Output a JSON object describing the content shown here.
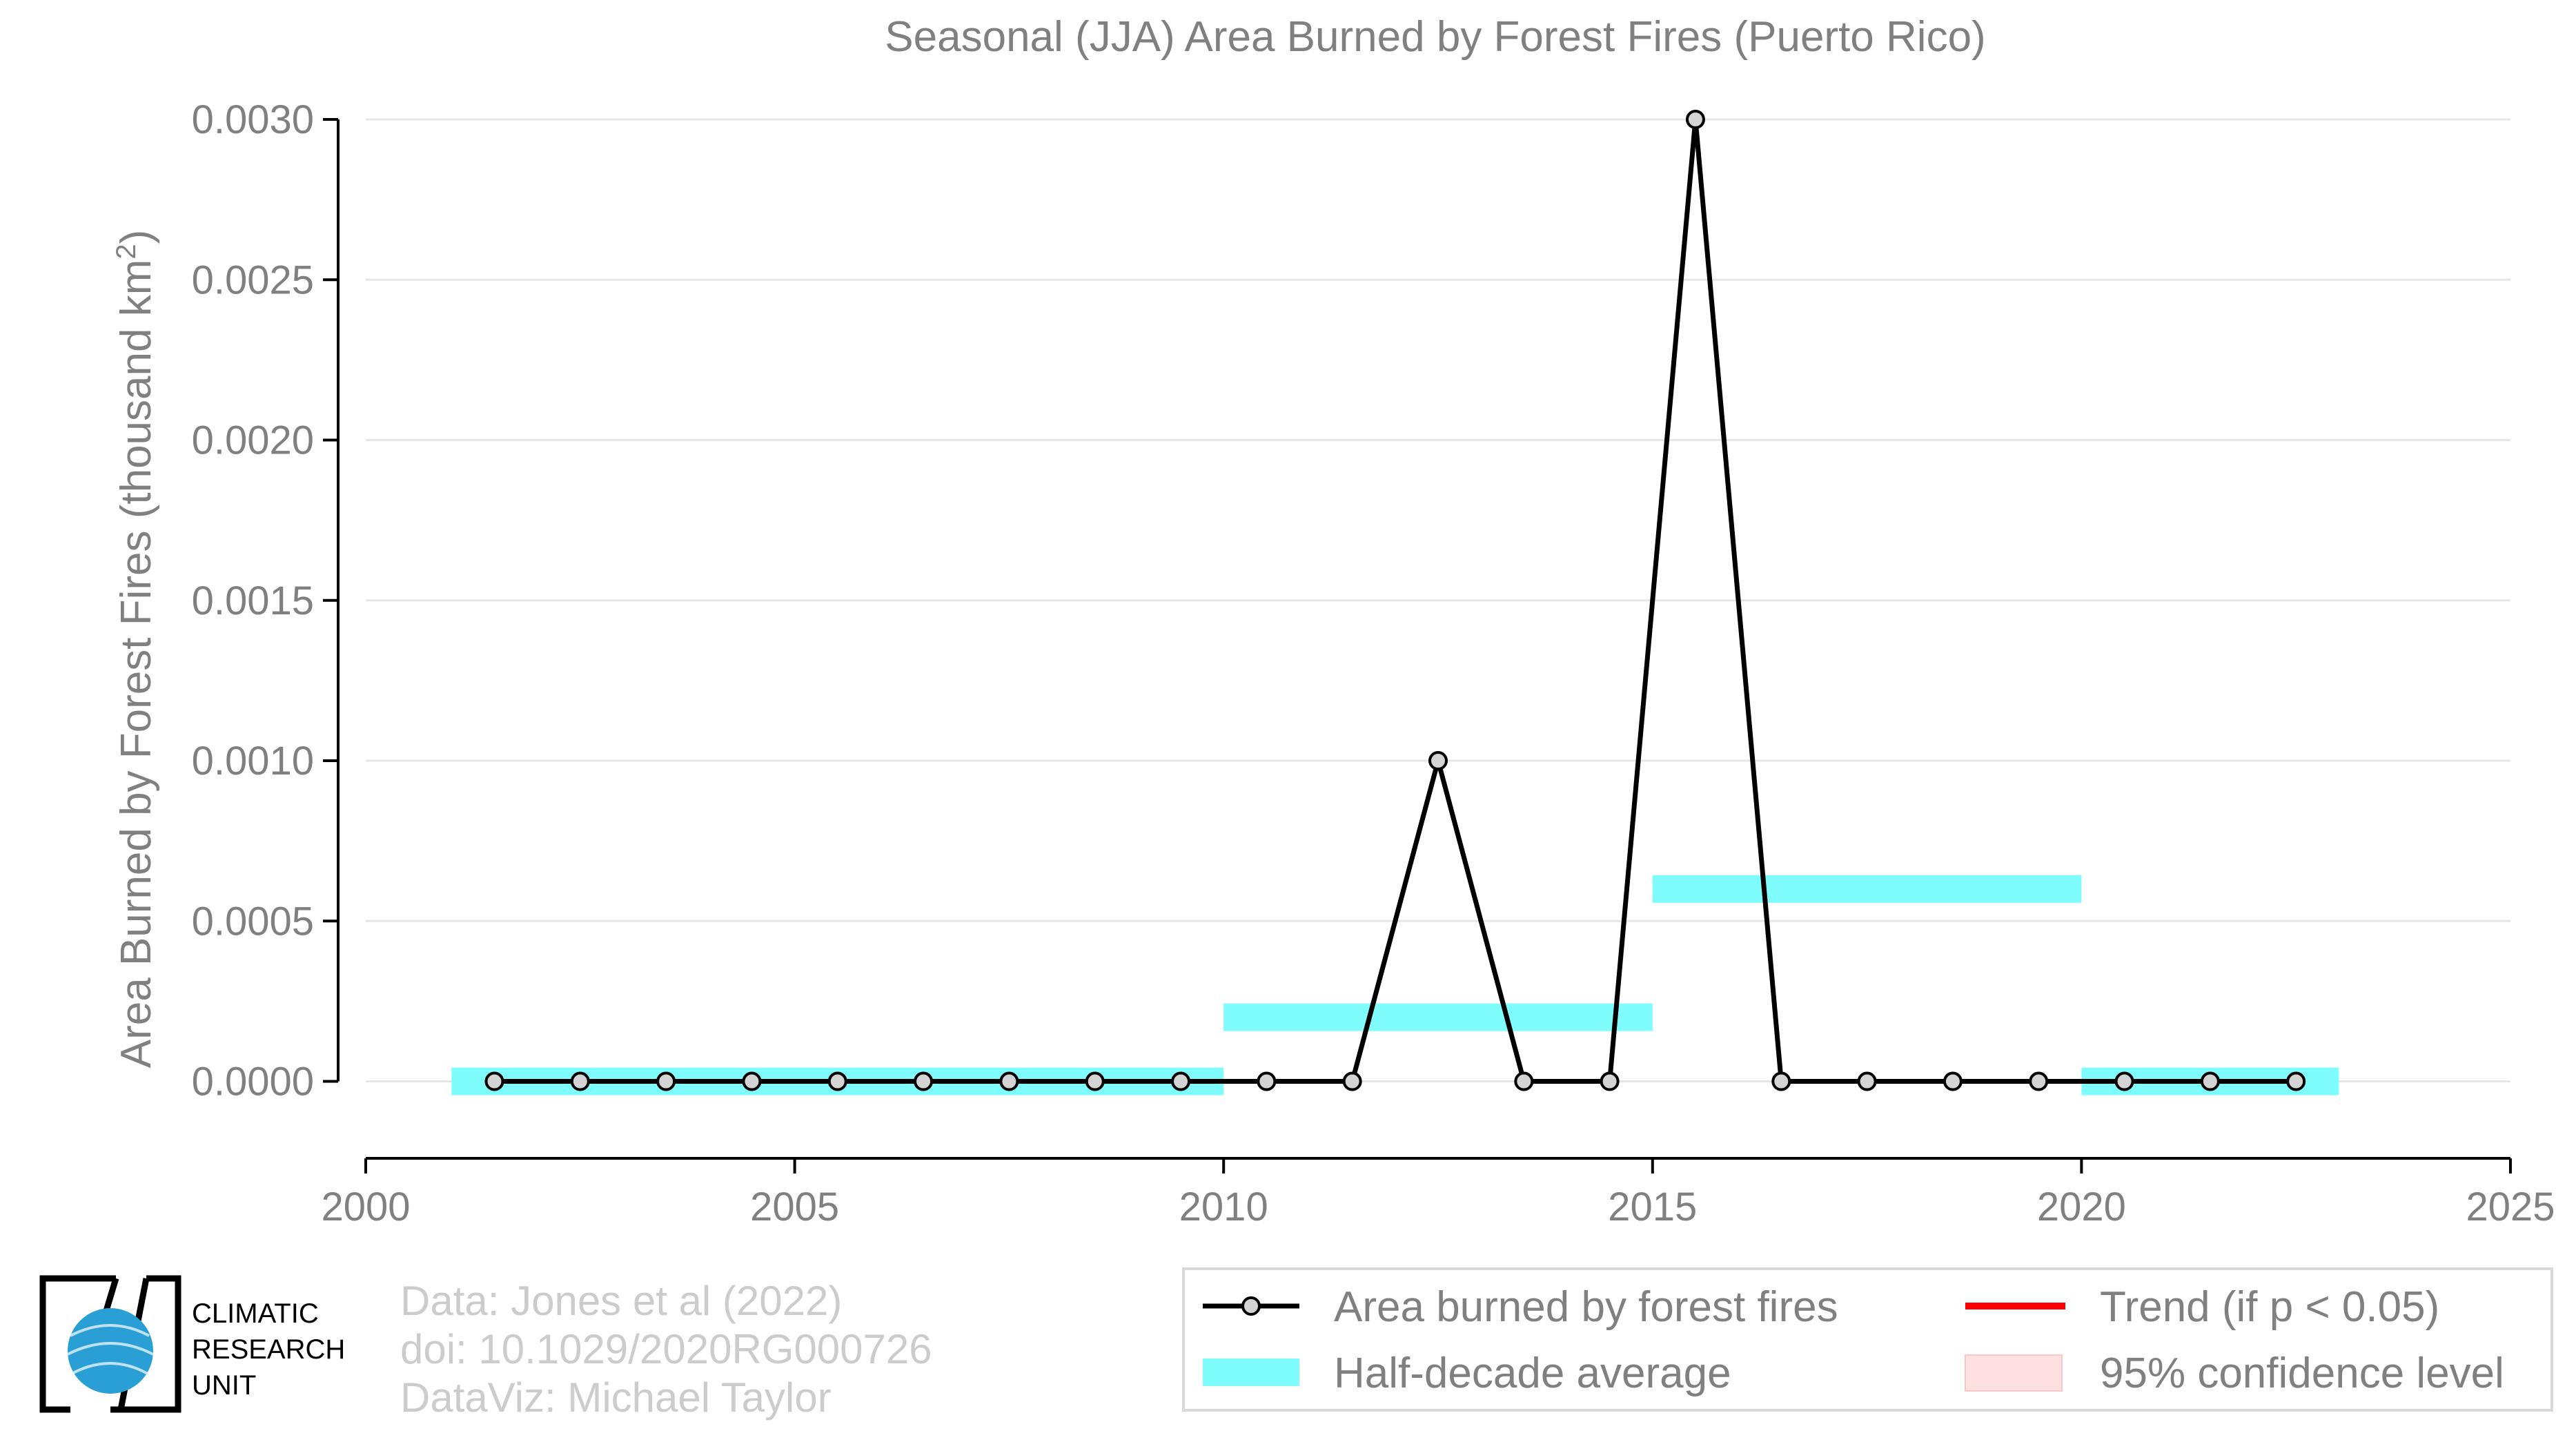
{
  "chart_data": {
    "type": "line",
    "title": "Seasonal (JJA) Area Burned by Forest Fires (Puerto Rico)",
    "ylabel_main": "Area Burned by Forest Fires (thousand km",
    "ylabel_sup": "2",
    "ylabel_close": ")",
    "xlabel": "",
    "xlim": [
      2000,
      2025
    ],
    "ylim": [
      -0.00024,
      0.003
    ],
    "xticks": [
      2000,
      2005,
      2010,
      2015,
      2020,
      2025
    ],
    "yticks": [
      0.0,
      0.0005,
      0.001,
      0.0015,
      0.002,
      0.0025,
      0.003
    ],
    "ytick_labels": [
      "0.0000",
      "0.0005",
      "0.0010",
      "0.0015",
      "0.0020",
      "0.0025",
      "0.0030"
    ],
    "grid": "horizontal",
    "legend_position": "bottom-right",
    "series": [
      {
        "name": "Area burned by forest fires",
        "color": "#000000",
        "x": [
          2001.5,
          2002.5,
          2003.5,
          2004.5,
          2005.5,
          2006.5,
          2007.5,
          2008.5,
          2009.5,
          2010.5,
          2011.5,
          2012.5,
          2013.5,
          2014.5,
          2015.5,
          2016.5,
          2017.5,
          2018.5,
          2019.5,
          2020.5,
          2021.5,
          2022.5
        ],
        "y": [
          0,
          0,
          0,
          0,
          0,
          0,
          0,
          0,
          0,
          0,
          0,
          0.001,
          0,
          0,
          0.003,
          0,
          0,
          0,
          0,
          0,
          0,
          0
        ]
      }
    ],
    "half_decade_average": {
      "name": "Half-decade average",
      "color": "#7ffcfc",
      "segments": [
        {
          "x0": 2001,
          "x1": 2010,
          "y": 0.0
        },
        {
          "x0": 2010,
          "x1": 2015,
          "y": 0.0002
        },
        {
          "x0": 2015,
          "x1": 2020,
          "y": 0.0006
        },
        {
          "x0": 2020,
          "x1": 2023,
          "y": 0.0
        }
      ]
    },
    "legend": [
      {
        "label": "Area burned by forest fires",
        "kind": "line-marker",
        "color": "#000000"
      },
      {
        "label": "Trend (if p < 0.05)",
        "kind": "line",
        "color": "#ff0000"
      },
      {
        "label": "Half-decade average",
        "kind": "band",
        "color": "#7ffcfc"
      },
      {
        "label": "95% confidence level",
        "kind": "patch",
        "color": "#ffe0e0"
      }
    ]
  },
  "credits": {
    "line1": "Data: Jones et al (2022)",
    "line2": "doi: 10.1029/2020RG000726",
    "line3": "DataViz: Michael Taylor"
  },
  "logo": {
    "line1": "CLIMATIC",
    "line2": "RESEARCH",
    "line3": "UNIT",
    "globe_color": "#2a9fd6"
  }
}
